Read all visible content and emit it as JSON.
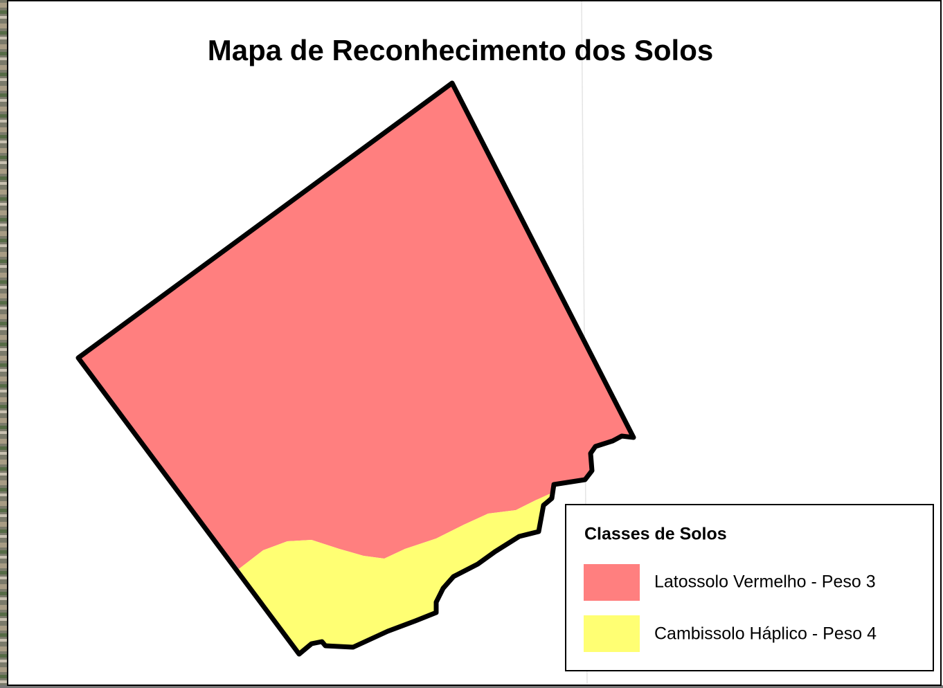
{
  "title": "Mapa de Reconhecimento dos Solos",
  "legend": {
    "title": "Classes de Solos",
    "items": [
      {
        "label": "Latossolo Vermelho - Peso 3",
        "color": "#ff7f7f"
      },
      {
        "label": "Cambissolo Háplico - Peso 4",
        "color": "#ffff73"
      }
    ]
  }
}
